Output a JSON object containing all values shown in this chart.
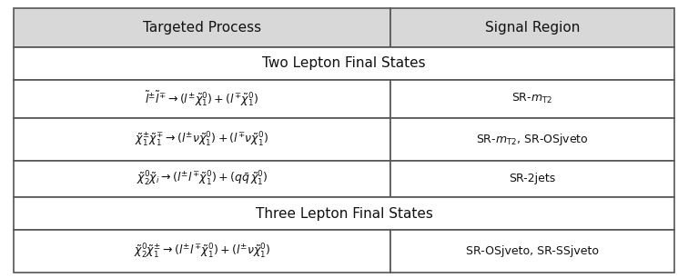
{
  "col_header": [
    "Targeted Process",
    "Signal Region"
  ],
  "section1_header": "Two Lepton Final States",
  "section2_header": "Three Lepton Final States",
  "rows": [
    {
      "process": "$\\tilde{l}^{\\pm}\\tilde{l}^{\\mp} \\rightarrow (l^{\\pm}\\tilde{\\chi}^{0}_{1}) + (l^{\\mp}\\tilde{\\chi}^{0}_{1})$",
      "sr": "SR-$m_{\\mathrm{T2}}$",
      "section": 1
    },
    {
      "process": "$\\tilde{\\chi}^{\\pm}_{1}\\tilde{\\chi}^{\\mp}_{1} \\rightarrow (l^{\\pm}\\nu\\tilde{\\chi}^{0}_{1}) + (l^{\\mp}\\nu\\tilde{\\chi}^{0}_{1})$",
      "sr": "SR-$m_{\\mathrm{T2}}$, SR-OSjveto",
      "section": 1
    },
    {
      "process": "$\\tilde{\\chi}^{0}_{2}\\tilde{\\chi}_{i} \\rightarrow (l^{\\pm}l^{\\mp}\\tilde{\\chi}^{0}_{1}) + (q\\bar{q}\\,\\tilde{\\chi}^{0}_{1})$",
      "sr": "SR-2jets",
      "section": 1
    },
    {
      "process": "$\\tilde{\\chi}^{0}_{2}\\tilde{\\chi}^{\\pm}_{1} \\rightarrow (l^{\\pm}l^{\\mp}\\tilde{\\chi}^{0}_{1}) + (l^{\\pm}\\nu\\tilde{\\chi}^{0}_{1})$",
      "sr": "SR-OSjveto, SR-SSjveto",
      "section": 2
    }
  ],
  "bg_color": "#f0f0f0",
  "header_bg": "#d8d8d8",
  "section_bg": "#e8e8e8",
  "border_color": "#555555",
  "text_color": "#111111",
  "fig_width": 7.56,
  "fig_height": 3.06
}
